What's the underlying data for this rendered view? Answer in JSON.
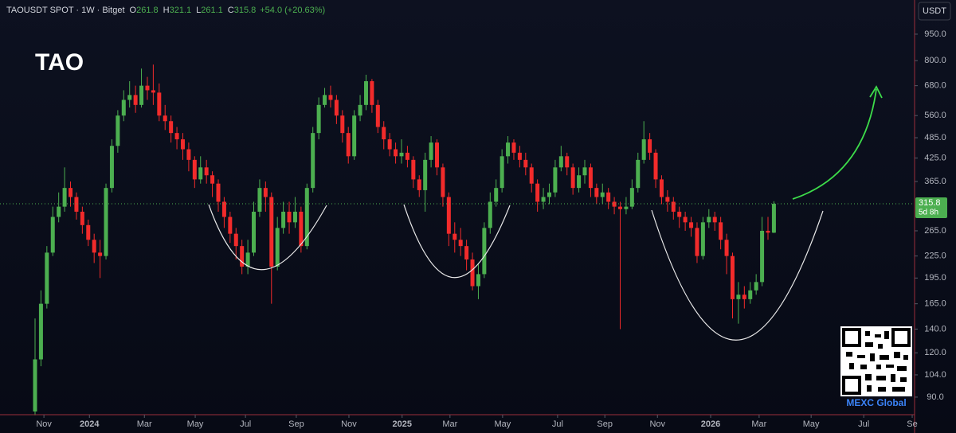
{
  "chart_data": {
    "type": "candlestick",
    "header": {
      "symbol": "TAOUSDT SPOT · 1W · Bitget",
      "ohlc": [
        {
          "label": "O",
          "value": "261.8"
        },
        {
          "label": "H",
          "value": "321.1"
        },
        {
          "label": "L",
          "value": "261.1"
        },
        {
          "label": "C",
          "value": "315.8"
        }
      ],
      "change": "+54.0 (+20.63%)"
    },
    "title": "TAO",
    "currency": "USDT",
    "last_price": {
      "value": 315.8,
      "label": "315.8",
      "countdown": "5d 8h"
    },
    "watermark": "MEXC Global",
    "yscale": "log",
    "ylim": [
      80.3,
      1186
    ],
    "yticks": [
      {
        "value": 950,
        "label": "950.0"
      },
      {
        "value": 800,
        "label": "800.0"
      },
      {
        "value": 680,
        "label": "680.0"
      },
      {
        "value": 560,
        "label": "560.0"
      },
      {
        "value": 485,
        "label": "485.0"
      },
      {
        "value": 425,
        "label": "425.0"
      },
      {
        "value": 365,
        "label": "365.0"
      },
      {
        "value": 265,
        "label": "265.0"
      },
      {
        "value": 225,
        "label": "225.0"
      },
      {
        "value": 195,
        "label": "195.0"
      },
      {
        "value": 165,
        "label": "165.0"
      },
      {
        "value": 140,
        "label": "140.0"
      },
      {
        "value": 120,
        "label": "120.0"
      },
      {
        "value": 104,
        "label": "104.0"
      },
      {
        "value": 90,
        "label": "90.0"
      }
    ],
    "xlim": [
      -5.93,
      148.8
    ],
    "xticks": [
      {
        "value": 1.5,
        "label": "Nov"
      },
      {
        "value": 9.2,
        "label": "2024"
      },
      {
        "value": 18.5,
        "label": "Mar"
      },
      {
        "value": 27.1,
        "label": "May"
      },
      {
        "value": 35.6,
        "label": "Jul"
      },
      {
        "value": 44.2,
        "label": "Sep"
      },
      {
        "value": 53.1,
        "label": "Nov"
      },
      {
        "value": 62.1,
        "label": "2025"
      },
      {
        "value": 70.2,
        "label": "Mar"
      },
      {
        "value": 79.1,
        "label": "May"
      },
      {
        "value": 88.4,
        "label": "Jul"
      },
      {
        "value": 96.4,
        "label": "Sep"
      },
      {
        "value": 105.3,
        "label": "Nov"
      },
      {
        "value": 114.3,
        "label": "2026"
      },
      {
        "value": 122.5,
        "label": "Mar"
      },
      {
        "value": 131.3,
        "label": "May"
      },
      {
        "value": 140.2,
        "label": "Jul"
      },
      {
        "value": 148.4,
        "label": "Se"
      }
    ],
    "up_color": "#4caf50",
    "down_color": "#f22b2b",
    "ohlc": [
      [
        82,
        150,
        80,
        115
      ],
      [
        115,
        180,
        110,
        165
      ],
      [
        165,
        240,
        160,
        230
      ],
      [
        230,
        310,
        225,
        290
      ],
      [
        290,
        340,
        280,
        310
      ],
      [
        310,
        400,
        300,
        350
      ],
      [
        350,
        365,
        310,
        330
      ],
      [
        330,
        340,
        285,
        300
      ],
      [
        300,
        310,
        260,
        275
      ],
      [
        275,
        285,
        240,
        250
      ],
      [
        250,
        260,
        215,
        230
      ],
      [
        230,
        250,
        195,
        225
      ],
      [
        225,
        360,
        220,
        350
      ],
      [
        350,
        480,
        340,
        460
      ],
      [
        460,
        580,
        440,
        560
      ],
      [
        560,
        660,
        540,
        620
      ],
      [
        620,
        700,
        590,
        640
      ],
      [
        640,
        680,
        570,
        600
      ],
      [
        600,
        760,
        590,
        680
      ],
      [
        680,
        720,
        620,
        660
      ],
      [
        660,
        780,
        600,
        650
      ],
      [
        650,
        690,
        540,
        560
      ],
      [
        560,
        600,
        510,
        540
      ],
      [
        540,
        560,
        470,
        500
      ],
      [
        500,
        520,
        450,
        480
      ],
      [
        480,
        500,
        420,
        450
      ],
      [
        450,
        470,
        390,
        420
      ],
      [
        420,
        430,
        350,
        370
      ],
      [
        370,
        430,
        360,
        400
      ],
      [
        400,
        420,
        360,
        380
      ],
      [
        380,
        390,
        330,
        360
      ],
      [
        360,
        370,
        300,
        320
      ],
      [
        320,
        330,
        270,
        290
      ],
      [
        290,
        300,
        245,
        260
      ],
      [
        260,
        270,
        220,
        240
      ],
      [
        240,
        250,
        200,
        210
      ],
      [
        210,
        250,
        200,
        230
      ],
      [
        230,
        320,
        225,
        300
      ],
      [
        300,
        370,
        290,
        350
      ],
      [
        350,
        365,
        300,
        330
      ],
      [
        330,
        340,
        165,
        210
      ],
      [
        210,
        290,
        205,
        270
      ],
      [
        270,
        320,
        260,
        300
      ],
      [
        300,
        320,
        260,
        280
      ],
      [
        280,
        330,
        270,
        300
      ],
      [
        300,
        310,
        230,
        240
      ],
      [
        240,
        360,
        235,
        350
      ],
      [
        350,
        520,
        340,
        500
      ],
      [
        500,
        630,
        480,
        600
      ],
      [
        600,
        670,
        590,
        640
      ],
      [
        640,
        680,
        590,
        620
      ],
      [
        620,
        640,
        530,
        560
      ],
      [
        560,
        580,
        470,
        500
      ],
      [
        500,
        520,
        410,
        430
      ],
      [
        430,
        580,
        420,
        560
      ],
      [
        560,
        640,
        540,
        600
      ],
      [
        600,
        730,
        580,
        700
      ],
      [
        700,
        710,
        570,
        600
      ],
      [
        600,
        620,
        500,
        520
      ],
      [
        520,
        540,
        450,
        480
      ],
      [
        480,
        500,
        430,
        450
      ],
      [
        450,
        470,
        410,
        430
      ],
      [
        430,
        480,
        410,
        440
      ],
      [
        440,
        460,
        400,
        420
      ],
      [
        420,
        430,
        350,
        370
      ],
      [
        370,
        380,
        330,
        345
      ],
      [
        345,
        440,
        300,
        420
      ],
      [
        420,
        490,
        400,
        470
      ],
      [
        470,
        480,
        380,
        400
      ],
      [
        400,
        410,
        310,
        330
      ],
      [
        330,
        340,
        240,
        260
      ],
      [
        260,
        280,
        230,
        250
      ],
      [
        250,
        270,
        225,
        240
      ],
      [
        240,
        250,
        205,
        220
      ],
      [
        220,
        230,
        180,
        185
      ],
      [
        185,
        215,
        170,
        200
      ],
      [
        200,
        280,
        195,
        270
      ],
      [
        270,
        340,
        260,
        320
      ],
      [
        320,
        370,
        310,
        350
      ],
      [
        350,
        450,
        340,
        430
      ],
      [
        430,
        490,
        410,
        470
      ],
      [
        470,
        480,
        420,
        440
      ],
      [
        440,
        460,
        400,
        420
      ],
      [
        420,
        440,
        380,
        400
      ],
      [
        400,
        410,
        340,
        360
      ],
      [
        360,
        370,
        300,
        320
      ],
      [
        320,
        350,
        305,
        330
      ],
      [
        330,
        360,
        315,
        340
      ],
      [
        340,
        420,
        330,
        400
      ],
      [
        400,
        460,
        390,
        430
      ],
      [
        430,
        440,
        380,
        400
      ],
      [
        400,
        410,
        335,
        350
      ],
      [
        350,
        400,
        340,
        380
      ],
      [
        380,
        420,
        360,
        400
      ],
      [
        400,
        410,
        330,
        350
      ],
      [
        350,
        360,
        315,
        330
      ],
      [
        330,
        360,
        315,
        340
      ],
      [
        340,
        350,
        305,
        320
      ],
      [
        320,
        330,
        295,
        310
      ],
      [
        310,
        320,
        140,
        305
      ],
      [
        305,
        330,
        295,
        310
      ],
      [
        310,
        370,
        305,
        350
      ],
      [
        350,
        440,
        340,
        420
      ],
      [
        420,
        540,
        410,
        480
      ],
      [
        480,
        500,
        420,
        440
      ],
      [
        440,
        450,
        350,
        370
      ],
      [
        370,
        380,
        315,
        330
      ],
      [
        330,
        345,
        300,
        320
      ],
      [
        320,
        330,
        285,
        300
      ],
      [
        300,
        310,
        270,
        290
      ],
      [
        290,
        300,
        265,
        280
      ],
      [
        280,
        290,
        255,
        270
      ],
      [
        270,
        280,
        215,
        225
      ],
      [
        225,
        290,
        220,
        280
      ],
      [
        280,
        305,
        270,
        290
      ],
      [
        290,
        300,
        265,
        280
      ],
      [
        280,
        290,
        235,
        250
      ],
      [
        250,
        260,
        200,
        225
      ],
      [
        225,
        230,
        150,
        170
      ],
      [
        170,
        190,
        145,
        175
      ],
      [
        175,
        185,
        160,
        170
      ],
      [
        170,
        190,
        165,
        180
      ],
      [
        180,
        200,
        175,
        190
      ],
      [
        190,
        290,
        185,
        265
      ],
      [
        265,
        290,
        250,
        261.8
      ],
      [
        261.8,
        321.1,
        261.1,
        315.8
      ]
    ]
  }
}
